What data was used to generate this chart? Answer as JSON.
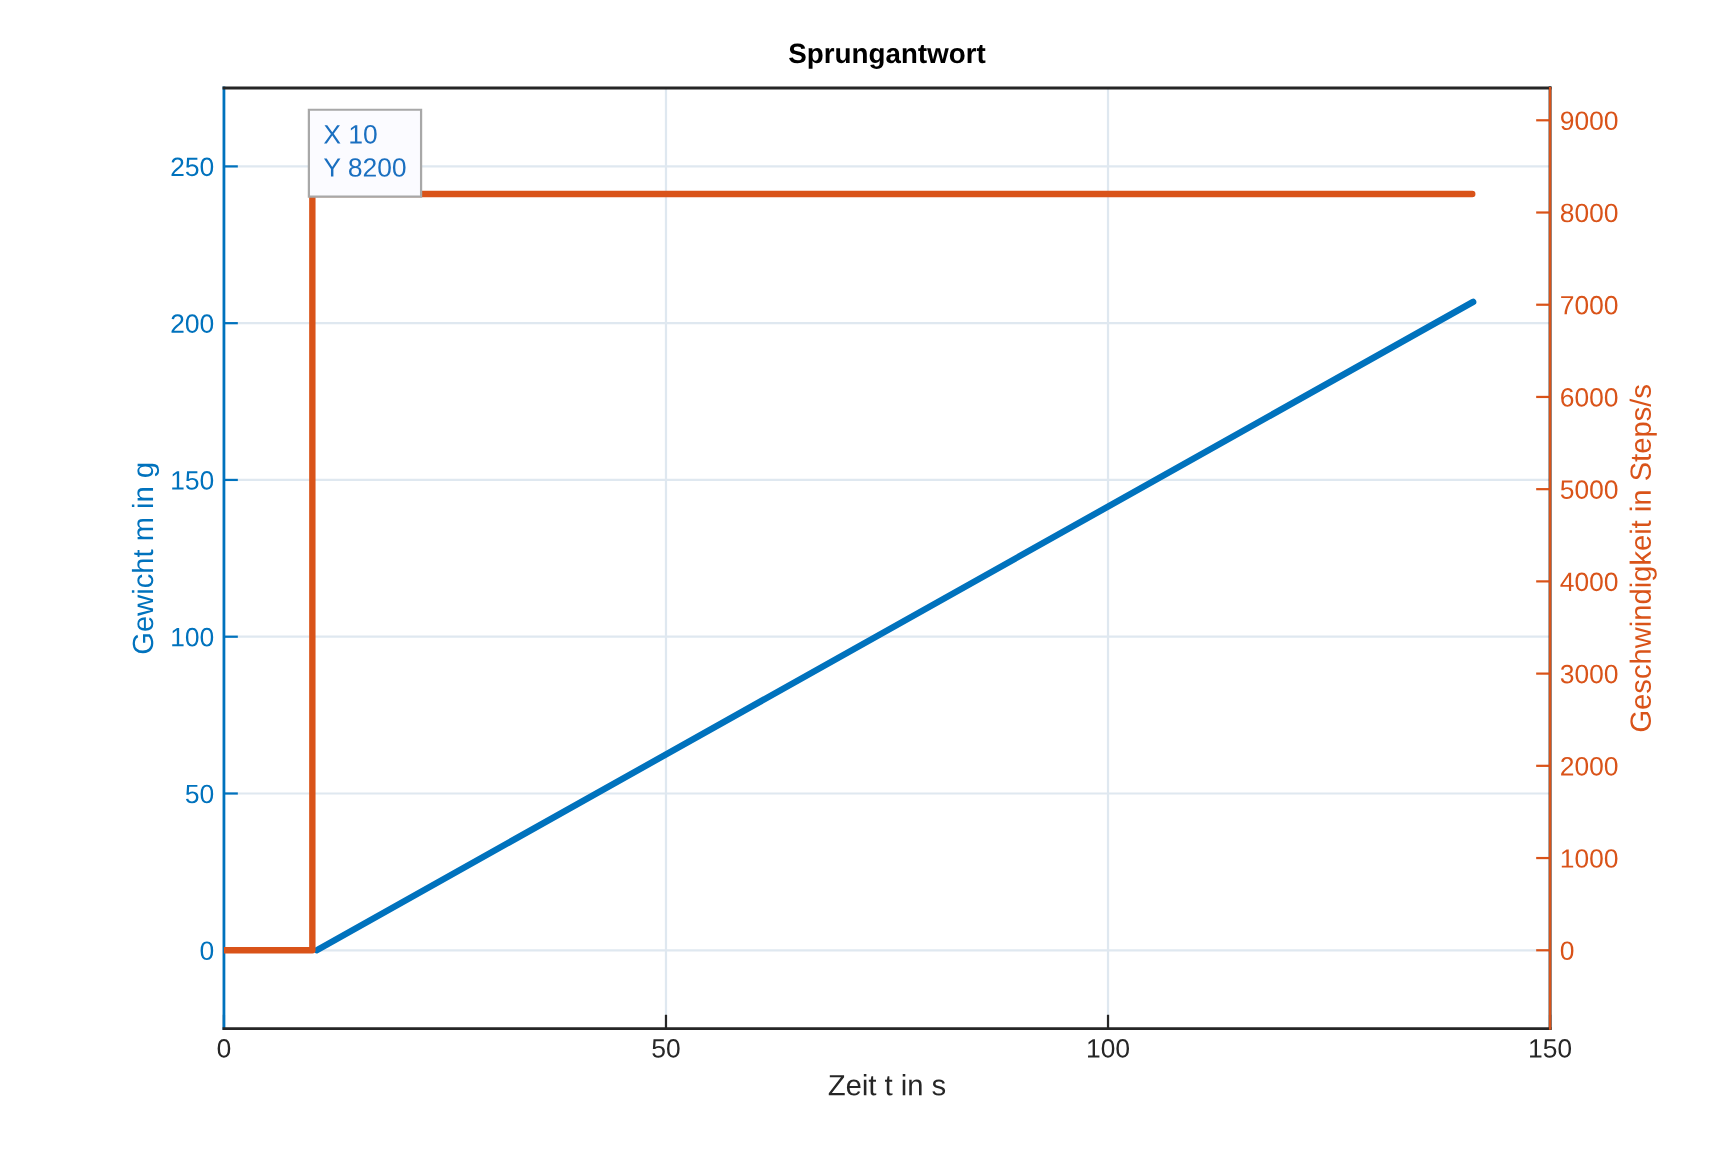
{
  "chart_data": {
    "type": "line",
    "title": "Sprungantwort",
    "xlabel": "Zeit t in s",
    "ylabel": "Gewicht m in g",
    "y2label": "Geschwindigkeit in Steps/s",
    "xlim": [
      0,
      150
    ],
    "xticks": [
      0,
      50,
      100,
      150
    ],
    "ylim": [
      -25,
      275
    ],
    "yticks": [
      0,
      50,
      100,
      150,
      200,
      250
    ],
    "y2lim": [
      -850,
      9350
    ],
    "y2ticks": [
      0,
      1000,
      2000,
      3000,
      4000,
      5000,
      6000,
      7000,
      8000,
      9000
    ],
    "grid": true,
    "series": [
      {
        "color": "#0072bd",
        "x": [
          10.5,
          141.3
        ],
        "values": [
          0,
          206.8
        ]
      },
      {
        "color": "#d95319",
        "axis": "y2",
        "x": [
          0,
          10,
          10,
          141.2
        ],
        "values": [
          0,
          0,
          8200,
          8200
        ]
      }
    ],
    "annotations": [
      "X 10\nY 8200"
    ]
  }
}
